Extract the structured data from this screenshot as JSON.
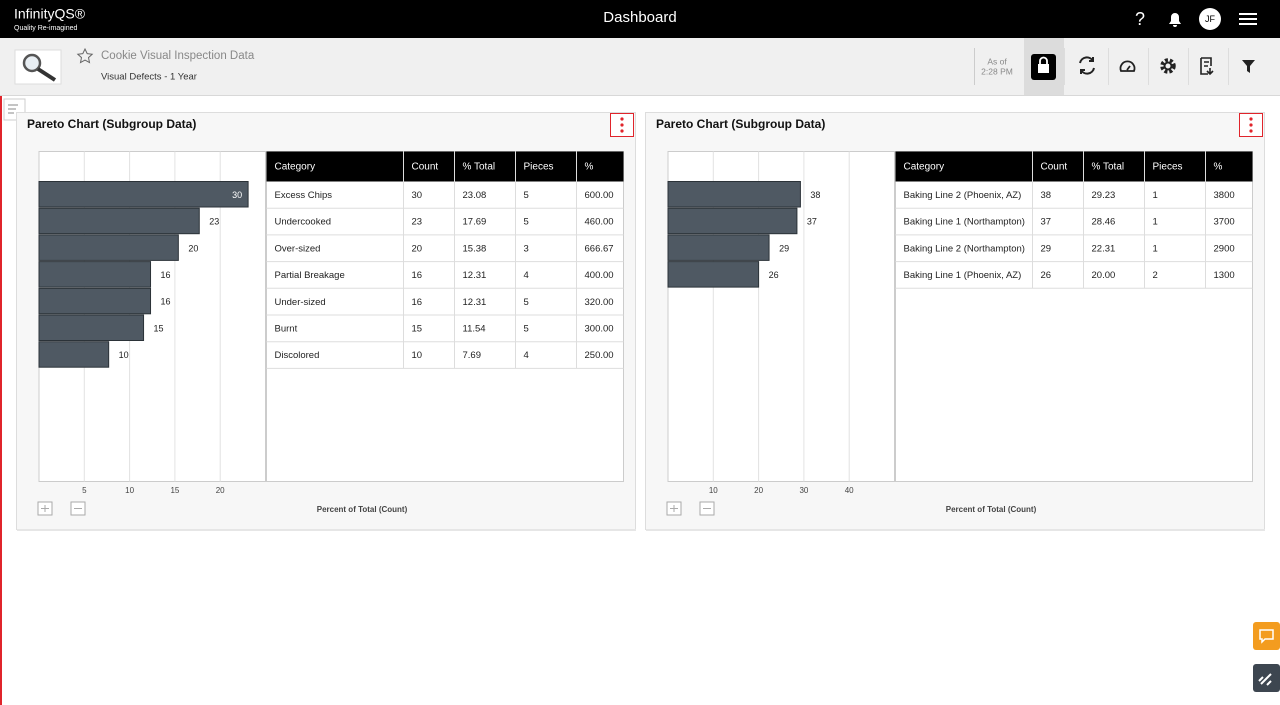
{
  "header": {
    "brand": "InfinityQS®",
    "tagline": "Quality Re-imagined",
    "title": "Dashboard",
    "help_icon": "?",
    "user_initials": "JF"
  },
  "toolbar": {
    "dataset": "Cookie Visual Inspection Data",
    "subtitle": "Visual Defects - 1 Year",
    "as_of_label": "As of",
    "as_of_time": "2:28 PM"
  },
  "panels": [
    {
      "title": "Pareto Chart (Subgroup Data)",
      "chart": {
        "type": "bar",
        "xlim": [
          0,
          25
        ],
        "xticks": [
          5,
          10,
          15,
          20
        ],
        "x_label": "Percent of Total (Count)",
        "bar_color": "#4f5963"
      },
      "table": {
        "columns": [
          "Category",
          "Count",
          "% Total",
          "Pieces",
          "%"
        ],
        "rows": [
          [
            "Excess Chips",
            "30",
            "23.08",
            "5",
            "600.00"
          ],
          [
            "Undercooked",
            "23",
            "17.69",
            "5",
            "460.00"
          ],
          [
            "Over-sized",
            "20",
            "15.38",
            "3",
            "666.67"
          ],
          [
            "Partial Breakage",
            "16",
            "12.31",
            "4",
            "400.00"
          ],
          [
            "Under-sized",
            "16",
            "12.31",
            "5",
            "320.00"
          ],
          [
            "Burnt",
            "15",
            "11.54",
            "5",
            "300.00"
          ],
          [
            "Discolored",
            "10",
            "7.69",
            "4",
            "250.00"
          ]
        ]
      }
    },
    {
      "title": "Pareto Chart (Subgroup Data)",
      "chart": {
        "type": "bar",
        "xlim": [
          0,
          50
        ],
        "xticks": [
          10,
          20,
          30,
          40
        ],
        "x_label": "Percent of Total (Count)",
        "bar_color": "#4f5963"
      },
      "table": {
        "columns": [
          "Category",
          "Count",
          "% Total",
          "Pieces",
          "%"
        ],
        "rows": [
          [
            "Baking Line 2 (Phoenix, AZ)",
            "38",
            "29.23",
            "1",
            "3800"
          ],
          [
            "Baking Line 1 (Northampton)",
            "37",
            "28.46",
            "1",
            "3700"
          ],
          [
            "Baking Line 2 (Northampton)",
            "29",
            "22.31",
            "1",
            "2900"
          ],
          [
            "Baking Line 1 (Phoenix, AZ)",
            "26",
            "20.00",
            "2",
            "1300"
          ]
        ]
      }
    }
  ]
}
